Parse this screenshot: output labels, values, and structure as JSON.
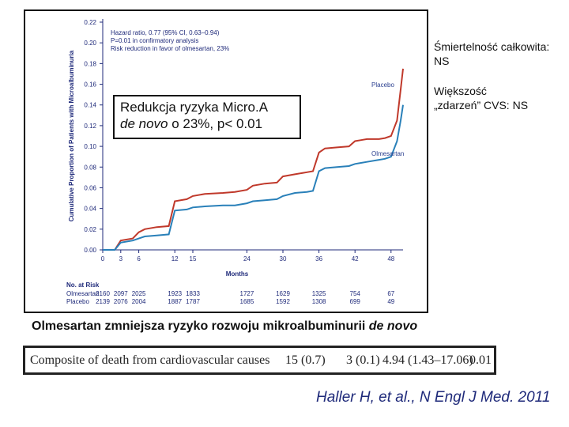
{
  "chart_data": {
    "type": "line",
    "ylabel": "Cumulative Proportion of Patients with Microalbuminuria",
    "xlabel": "Months",
    "x_ticks": [
      0,
      3,
      6,
      12,
      15,
      24,
      30,
      36,
      42,
      48
    ],
    "y_ticks": [
      "0.00",
      "0.02",
      "0.04",
      "0.06",
      "0.08",
      "0.10",
      "0.12",
      "0.14",
      "0.16",
      "0.18",
      "0.20",
      "0.22"
    ],
    "xlim": [
      0,
      50
    ],
    "ylim": [
      0,
      0.22
    ],
    "annotation_lines": [
      "Hazard ratio, 0.77 (95% CI, 0.63–0.94)",
      "P=0.01 in confirmatory analysis",
      "Risk reduction in favor of olmesartan, 23%"
    ],
    "series": [
      {
        "name": "Placebo",
        "color": "#c0392b",
        "points": [
          [
            0,
            0
          ],
          [
            2,
            0
          ],
          [
            3,
            0.009
          ],
          [
            5,
            0.011
          ],
          [
            6,
            0.017
          ],
          [
            7,
            0.02
          ],
          [
            9,
            0.022
          ],
          [
            11,
            0.023
          ],
          [
            12,
            0.047
          ],
          [
            14,
            0.049
          ],
          [
            15,
            0.052
          ],
          [
            17,
            0.054
          ],
          [
            20,
            0.055
          ],
          [
            22,
            0.056
          ],
          [
            24,
            0.058
          ],
          [
            25,
            0.062
          ],
          [
            27,
            0.064
          ],
          [
            29,
            0.065
          ],
          [
            30,
            0.071
          ],
          [
            32,
            0.073
          ],
          [
            34,
            0.075
          ],
          [
            35,
            0.076
          ],
          [
            36,
            0.094
          ],
          [
            37,
            0.098
          ],
          [
            39,
            0.099
          ],
          [
            41,
            0.1
          ],
          [
            42,
            0.105
          ],
          [
            43,
            0.106
          ],
          [
            44,
            0.107
          ],
          [
            46,
            0.107
          ],
          [
            47,
            0.108
          ],
          [
            48,
            0.11
          ],
          [
            49,
            0.125
          ],
          [
            49.6,
            0.155
          ],
          [
            50,
            0.175
          ]
        ]
      },
      {
        "name": "Olmesartan",
        "color": "#2980b9",
        "points": [
          [
            0,
            0
          ],
          [
            2,
            0
          ],
          [
            3,
            0.007
          ],
          [
            5,
            0.009
          ],
          [
            6,
            0.011
          ],
          [
            7,
            0.013
          ],
          [
            9,
            0.014
          ],
          [
            11,
            0.015
          ],
          [
            12,
            0.038
          ],
          [
            14,
            0.039
          ],
          [
            15,
            0.041
          ],
          [
            17,
            0.042
          ],
          [
            20,
            0.043
          ],
          [
            22,
            0.043
          ],
          [
            24,
            0.045
          ],
          [
            25,
            0.047
          ],
          [
            27,
            0.048
          ],
          [
            29,
            0.049
          ],
          [
            30,
            0.052
          ],
          [
            32,
            0.055
          ],
          [
            34,
            0.056
          ],
          [
            35,
            0.057
          ],
          [
            36,
            0.076
          ],
          [
            37,
            0.079
          ],
          [
            39,
            0.08
          ],
          [
            41,
            0.081
          ],
          [
            42,
            0.083
          ],
          [
            43,
            0.084
          ],
          [
            44,
            0.085
          ],
          [
            46,
            0.087
          ],
          [
            47,
            0.088
          ],
          [
            48,
            0.09
          ],
          [
            49,
            0.105
          ],
          [
            49.6,
            0.125
          ],
          [
            50,
            0.14
          ]
        ]
      }
    ],
    "risk_table": {
      "title": "No. at Risk",
      "rows": [
        {
          "name": "Olmesartan",
          "values": [
            "2160",
            "2097",
            "2025",
            "1923",
            "1833",
            "1727",
            "1629",
            "1325",
            "754",
            "67"
          ]
        },
        {
          "name": "Placebo",
          "values": [
            "2139",
            "2076",
            "2004",
            "1887",
            "1787",
            "1685",
            "1592",
            "1308",
            "699",
            "49"
          ]
        }
      ]
    }
  },
  "callout": {
    "line1": "Redukcja ryzyka Micro.A",
    "line2_italic": "de novo",
    "line2_rest": " o 23%, p< 0.01"
  },
  "side_notes": {
    "mortality_line1": "Śmiertelność całkowita:",
    "mortality_line2": "NS",
    "cvs_line1": "Większość",
    "cvs_line2": "„zdarzeń” CVS: NS"
  },
  "caption": {
    "main": "Olmesartan zmniejsza ryzyko rozwoju mikroalbuminurii ",
    "italic": "de novo"
  },
  "table_row": {
    "label": "Composite of death from cardiovascular causes",
    "col1": "15 (0.7)",
    "col2": "3 (0.1)",
    "col3": "4.94 (1.43–17.06)",
    "col4": "0.01"
  },
  "citation": "Haller H, et al., N Engl J Med. 2011"
}
